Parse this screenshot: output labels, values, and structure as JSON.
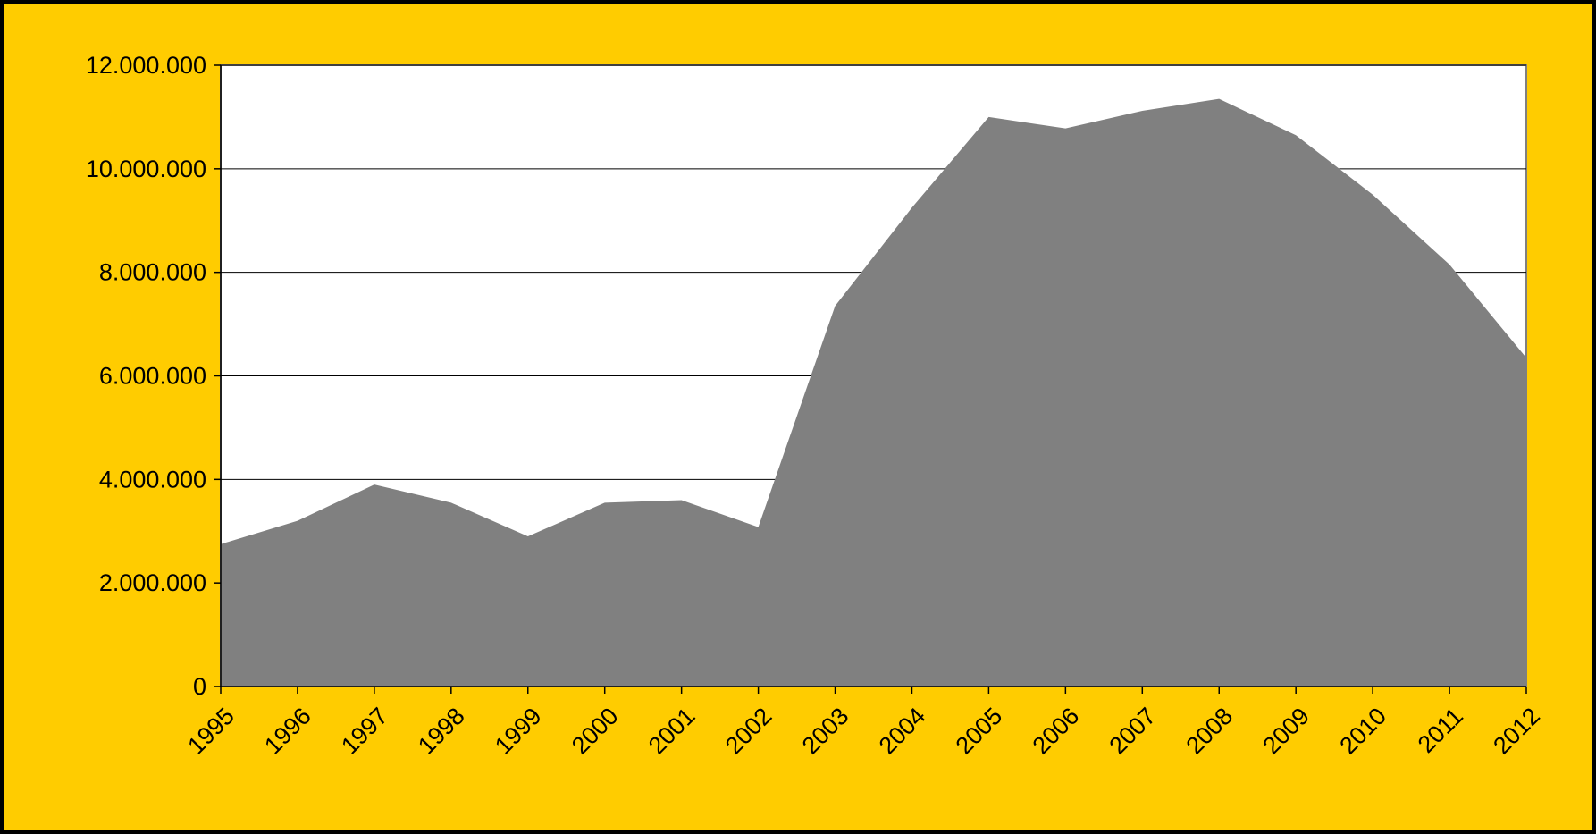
{
  "chart_data": {
    "type": "area",
    "title": "",
    "xlabel": "",
    "ylabel": "",
    "categories": [
      "1995",
      "1996",
      "1997",
      "1998",
      "1999",
      "2000",
      "2001",
      "2002",
      "2003",
      "2004",
      "2005",
      "2006",
      "2007",
      "2008",
      "2009",
      "2010",
      "2011",
      "2012"
    ],
    "series": [
      {
        "values": [
          2750000,
          3200000,
          3900000,
          3550000,
          2900000,
          3550000,
          3600000,
          3080000,
          7350000,
          9250000,
          11000000,
          10780000,
          11120000,
          11350000,
          10650000,
          9500000,
          8150000,
          6350000
        ]
      }
    ],
    "ylim": [
      0,
      12000000
    ],
    "yticks": [
      0,
      2000000,
      4000000,
      6000000,
      8000000,
      10000000,
      12000000
    ],
    "ytick_labels": [
      "0",
      "2.000.000",
      "4.000.000",
      "6.000.000",
      "8.000.000",
      "10.000.000",
      "12.000.000"
    ],
    "grid": "horizontal",
    "legend": "none",
    "colors": {
      "page_border": "#000000",
      "background": "#FFCC00",
      "plot_area": "#FFFFFF",
      "area_fill": "#808080",
      "gridline": "#000000",
      "axis": "#000000"
    }
  }
}
